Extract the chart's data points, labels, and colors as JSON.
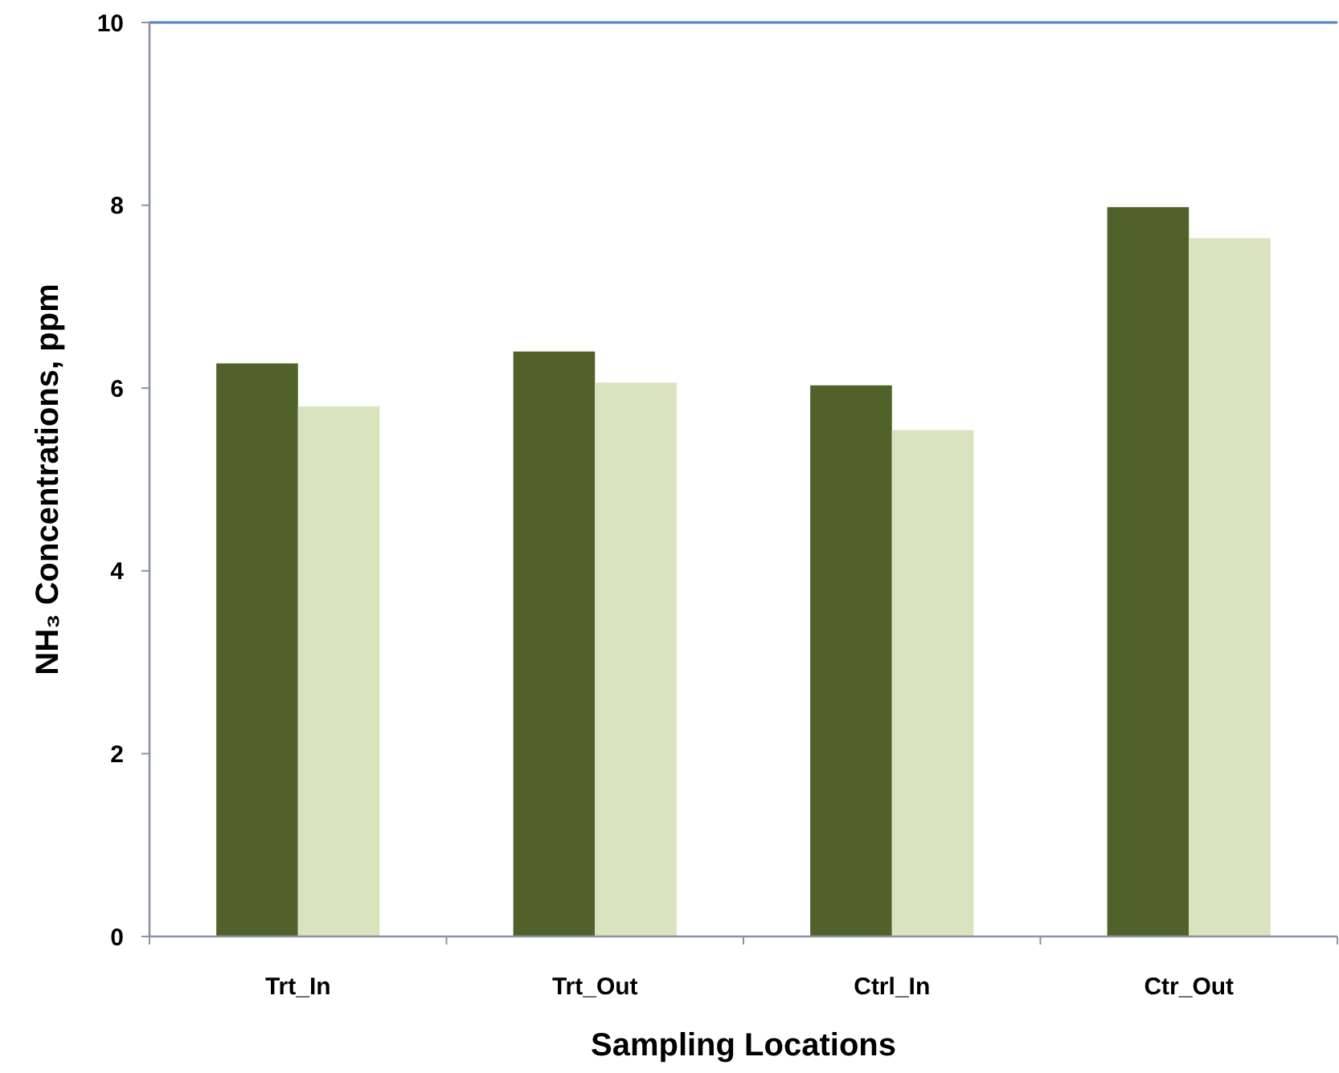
{
  "chart_data": {
    "type": "bar",
    "xlabel": "Sampling Locations",
    "ylabel": "NH₃ Concentrations, ppm",
    "categories": [
      "Trt_In",
      "Trt_Out",
      "Ctrl_In",
      "Ctr_Out"
    ],
    "series": [
      {
        "color": "#506229",
        "values": [
          6.27,
          6.4,
          6.03,
          7.98
        ]
      },
      {
        "color": "#d9e4bf",
        "values": [
          5.8,
          6.06,
          5.54,
          7.64
        ]
      }
    ],
    "ylim": [
      0,
      10
    ],
    "yticks": [
      0,
      2,
      4,
      6,
      8,
      10
    ]
  }
}
